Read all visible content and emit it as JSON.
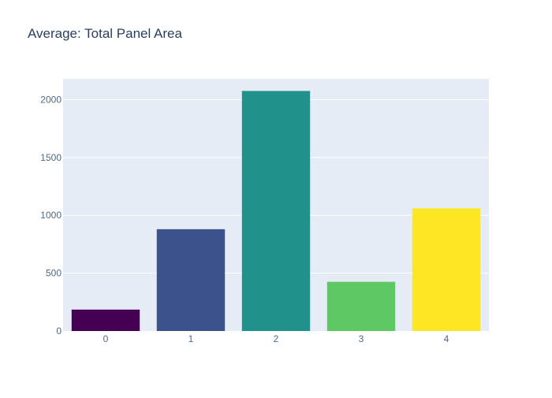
{
  "chart_data": {
    "type": "bar",
    "title": "Average: Total Panel Area",
    "xlabel": "",
    "ylabel": "",
    "categories": [
      "0",
      "1",
      "2",
      "3",
      "4"
    ],
    "values": [
      185,
      880,
      2075,
      425,
      1060
    ],
    "colors": [
      "#440154",
      "#3b528b",
      "#21918c",
      "#5ec962",
      "#fde725"
    ],
    "ylim": [
      0,
      2180
    ],
    "yticks": [
      0,
      500,
      1000,
      1500,
      2000
    ],
    "ytick_labels": [
      "0",
      "500",
      "1000",
      "1500",
      "2000"
    ],
    "grid": true,
    "legend": "none",
    "plot_background": "#e5ecf6",
    "grid_color": "#ffffff",
    "text_color": "#2a3f5f",
    "tick_color": "#506784"
  }
}
